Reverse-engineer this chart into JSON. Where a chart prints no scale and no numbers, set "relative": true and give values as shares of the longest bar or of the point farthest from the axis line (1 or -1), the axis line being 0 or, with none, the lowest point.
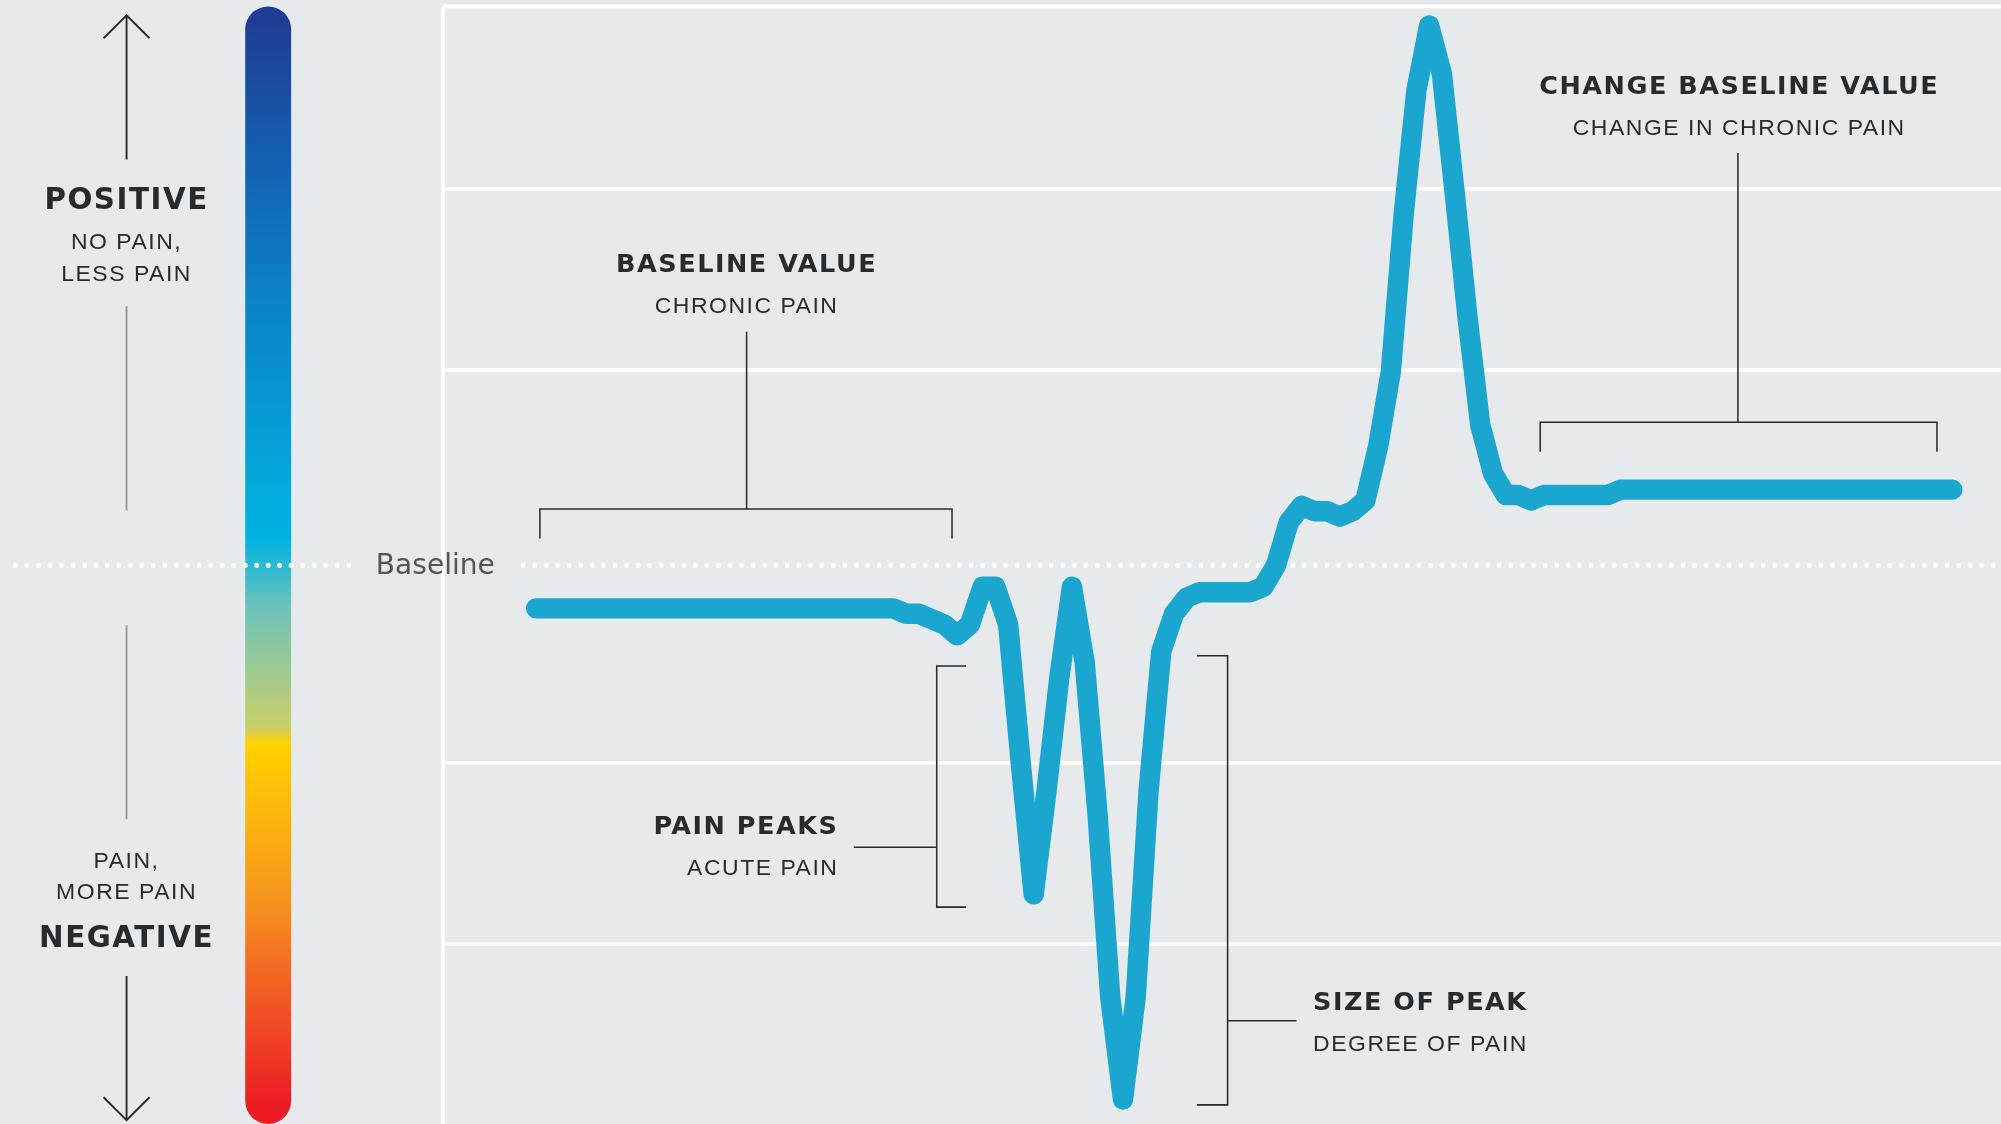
{
  "chart_data": {
    "type": "line",
    "relative": true,
    "categories": [
      null,
      null,
      null,
      null,
      null,
      null,
      null,
      null,
      null,
      null,
      null,
      null,
      null,
      null,
      null,
      null,
      null,
      null,
      null,
      null,
      null,
      null,
      null,
      null,
      null,
      null,
      null,
      null,
      null,
      null,
      null,
      null,
      null,
      null,
      null,
      null,
      null,
      null,
      null,
      null,
      null,
      null,
      null,
      null,
      null,
      null,
      null,
      null,
      null,
      null,
      null,
      null,
      null,
      null,
      null,
      null,
      null,
      null,
      null,
      null,
      null,
      null,
      null,
      null,
      null,
      null,
      null,
      null,
      null,
      null,
      null,
      null,
      null,
      null,
      null,
      null,
      null,
      null,
      null,
      null,
      null,
      null,
      null,
      null,
      null,
      null,
      null,
      null,
      null,
      null,
      null,
      null,
      null,
      null,
      null,
      null,
      null,
      null,
      null,
      null,
      null,
      null,
      null,
      null,
      null,
      null,
      null,
      null,
      null,
      null,
      null,
      null
    ],
    "series": [
      {
        "color": "#1aa6cf",
        "values": [
          -0.08,
          -0.08,
          -0.08,
          -0.08,
          -0.08,
          -0.08,
          -0.08,
          -0.08,
          -0.08,
          -0.08,
          -0.08,
          -0.08,
          -0.08,
          -0.08,
          -0.08,
          -0.08,
          -0.08,
          -0.08,
          -0.08,
          -0.08,
          -0.08,
          -0.08,
          -0.08,
          -0.08,
          -0.08,
          -0.08,
          -0.08,
          -0.08,
          -0.08,
          -0.09,
          -0.09,
          -0.1,
          -0.11,
          -0.13,
          -0.11,
          -0.04,
          -0.04,
          -0.11,
          -0.37,
          -0.61,
          -0.42,
          -0.21,
          -0.04,
          -0.18,
          -0.46,
          -0.8,
          -0.99,
          -0.8,
          -0.42,
          -0.16,
          -0.09,
          -0.06,
          -0.05,
          -0.05,
          -0.05,
          -0.05,
          -0.05,
          -0.04,
          0,
          0.08,
          0.11,
          0.1,
          0.1,
          0.09,
          0.1,
          0.12,
          0.22,
          0.36,
          0.65,
          0.88,
          1,
          0.91,
          0.69,
          0.46,
          0.26,
          0.17,
          0.13,
          0.13,
          0.12,
          0.13,
          0.13,
          0.13,
          0.13,
          0.13,
          0.13,
          0.14,
          0.14,
          0.14,
          0.14,
          0.14,
          0.14,
          0.14,
          0.14,
          0.14,
          0.14,
          0.14,
          0.14,
          0.14,
          0.14,
          0.14,
          0.14,
          0.14,
          0.14,
          0.14,
          0.14,
          0.14,
          0.14,
          0.14,
          0.14,
          0.14,
          0.14,
          0.14
        ]
      }
    ],
    "ref_lines": [
      {
        "axis": "y",
        "value": 0,
        "label": "Baseline",
        "line_style": "dotted",
        "color": "#ffffff"
      }
    ],
    "annotations": [
      "POSITIVE",
      "NO PAIN,\nLESS PAIN",
      "PAIN,\nMORE PAIN",
      "NEGATIVE",
      "BASELINE VALUE",
      "CHRONIC PAIN",
      "CHANGE BASELINE VALUE",
      "CHANGE IN CHRONIC PAIN",
      "PAIN PEAKS",
      "ACUTE PAIN",
      "SIZE OF PEAK",
      "DEGREE OF PAIN"
    ]
  }
}
